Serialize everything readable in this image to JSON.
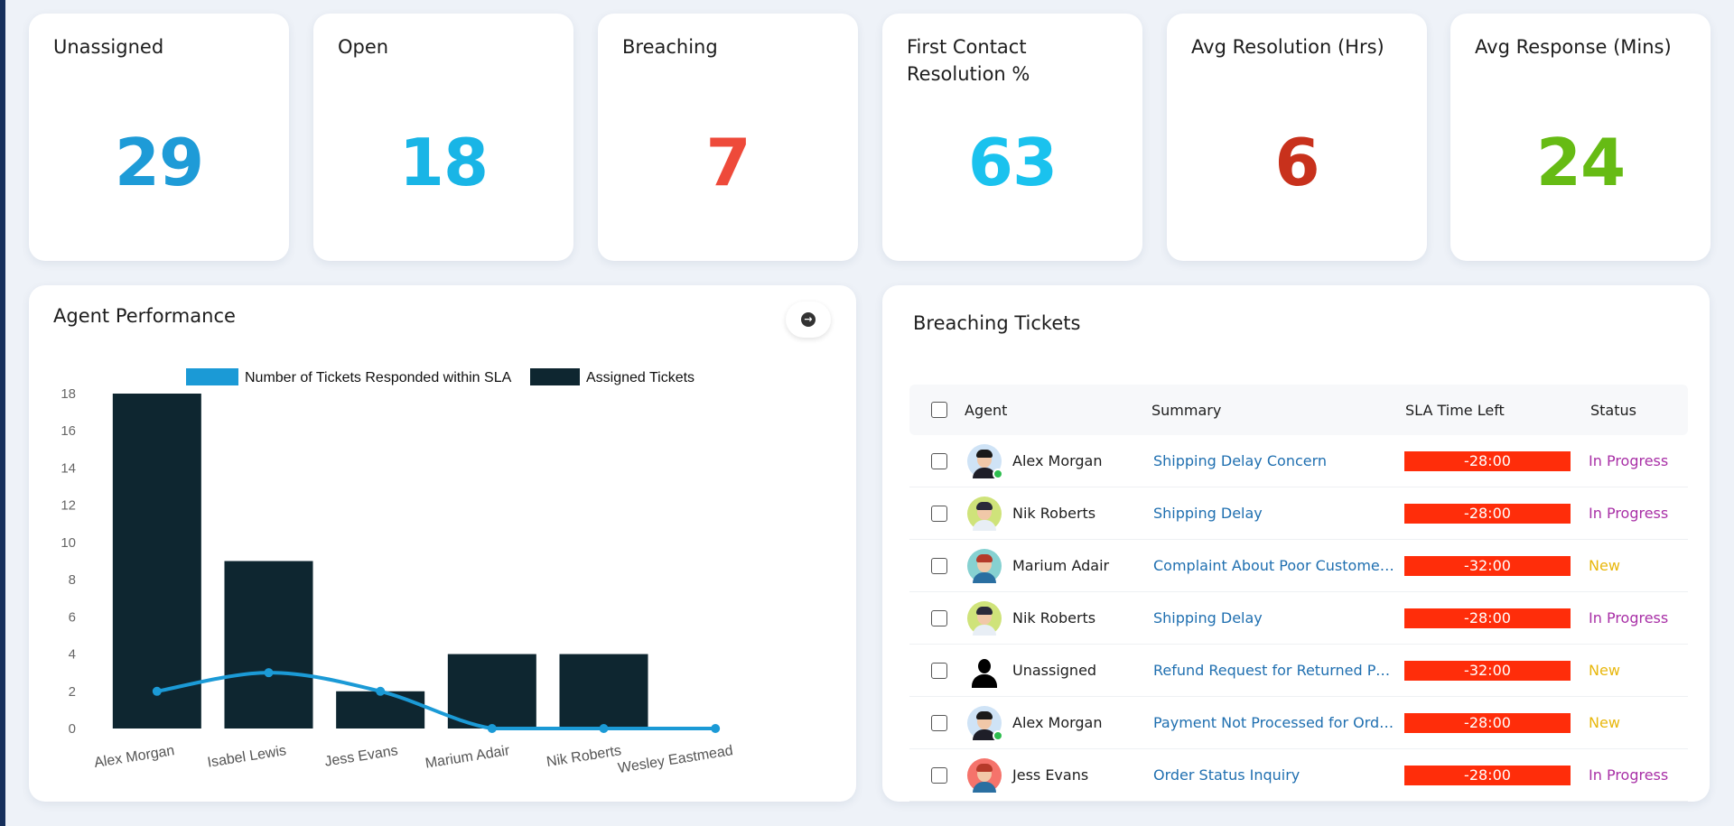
{
  "kpis": [
    {
      "title": "Unassigned",
      "value": "29",
      "color": "#1e9bd7"
    },
    {
      "title": "Open",
      "value": "18",
      "color": "#19b5e6"
    },
    {
      "title": "Breaching",
      "value": "7",
      "color": "#ee4a3a"
    },
    {
      "title": "First Contact Resolution %",
      "value": "63",
      "color": "#1ac2ee"
    },
    {
      "title": "Avg Resolution (Hrs)",
      "value": "6",
      "color": "#c8311c"
    },
    {
      "title": "Avg Response (Mins)",
      "value": "24",
      "color": "#66bb14"
    }
  ],
  "agent_performance": {
    "title": "Agent Performance",
    "nav_icon": "arrow-right-circle-icon"
  },
  "chart_data": {
    "type": "bar",
    "categories": [
      "Alex Morgan",
      "Isabel Lewis",
      "Jess Evans",
      "Marium Adair",
      "Nik Roberts",
      "Wesley Eastmead"
    ],
    "series": [
      {
        "name": "Number of Tickets Responded within SLA",
        "type": "line",
        "color": "#1b9ad6",
        "values": [
          2,
          3,
          2,
          0,
          0,
          0
        ]
      },
      {
        "name": "Assigned Tickets",
        "type": "bar",
        "color": "#0e2630",
        "values": [
          18,
          9,
          2,
          4,
          4,
          null
        ]
      }
    ],
    "yticks": [
      "0",
      "2",
      "4",
      "6",
      "8",
      "10",
      "12",
      "14",
      "16",
      "18"
    ],
    "ylim": [
      0,
      18
    ],
    "legend": "top",
    "grid": false
  },
  "breaching": {
    "title": "Breaching Tickets",
    "headers": {
      "agent": "Agent",
      "summary": "Summary",
      "sla": "SLA Time Left",
      "status": "Status"
    },
    "rows": [
      {
        "agent": "Alex Morgan",
        "summary": "Shipping Delay Concern",
        "sla": "-28:00",
        "status": "In Progress",
        "status_color": "#a82fa6",
        "avatar_bg": "#cfe3f6",
        "avatar_type": "man",
        "online": true
      },
      {
        "agent": "Nik Roberts",
        "summary": "Shipping Delay",
        "sla": "-28:00",
        "status": "In Progress",
        "status_color": "#a82fa6",
        "avatar_bg": "#cfe37a",
        "avatar_type": "woman",
        "online": false
      },
      {
        "agent": "Marium Adair",
        "summary": "Complaint About Poor Customer...",
        "sla": "-32:00",
        "status": "New",
        "status_color": "#e8b70c",
        "avatar_bg": "#86d1d1",
        "avatar_type": "woman-red",
        "online": false
      },
      {
        "agent": "Nik Roberts",
        "summary": "Shipping Delay",
        "sla": "-28:00",
        "status": "In Progress",
        "status_color": "#a82fa6",
        "avatar_bg": "#cfe37a",
        "avatar_type": "woman",
        "online": false
      },
      {
        "agent": "Unassigned",
        "summary": "Refund Request for Returned Pro...",
        "sla": "-32:00",
        "status": "New",
        "status_color": "#e8b70c",
        "avatar_bg": "#ffffff",
        "avatar_type": "silhouette",
        "online": false
      },
      {
        "agent": "Alex Morgan",
        "summary": "Payment Not Processed for Orde...",
        "sla": "-28:00",
        "status": "New",
        "status_color": "#e8b70c",
        "avatar_bg": "#cfe3f6",
        "avatar_type": "man",
        "online": true
      },
      {
        "agent": "Jess Evans",
        "summary": "Order Status Inquiry",
        "sla": "-28:00",
        "status": "In Progress",
        "status_color": "#a82fa6",
        "avatar_bg": "#f5736b",
        "avatar_type": "woman-red",
        "online": false
      }
    ]
  }
}
